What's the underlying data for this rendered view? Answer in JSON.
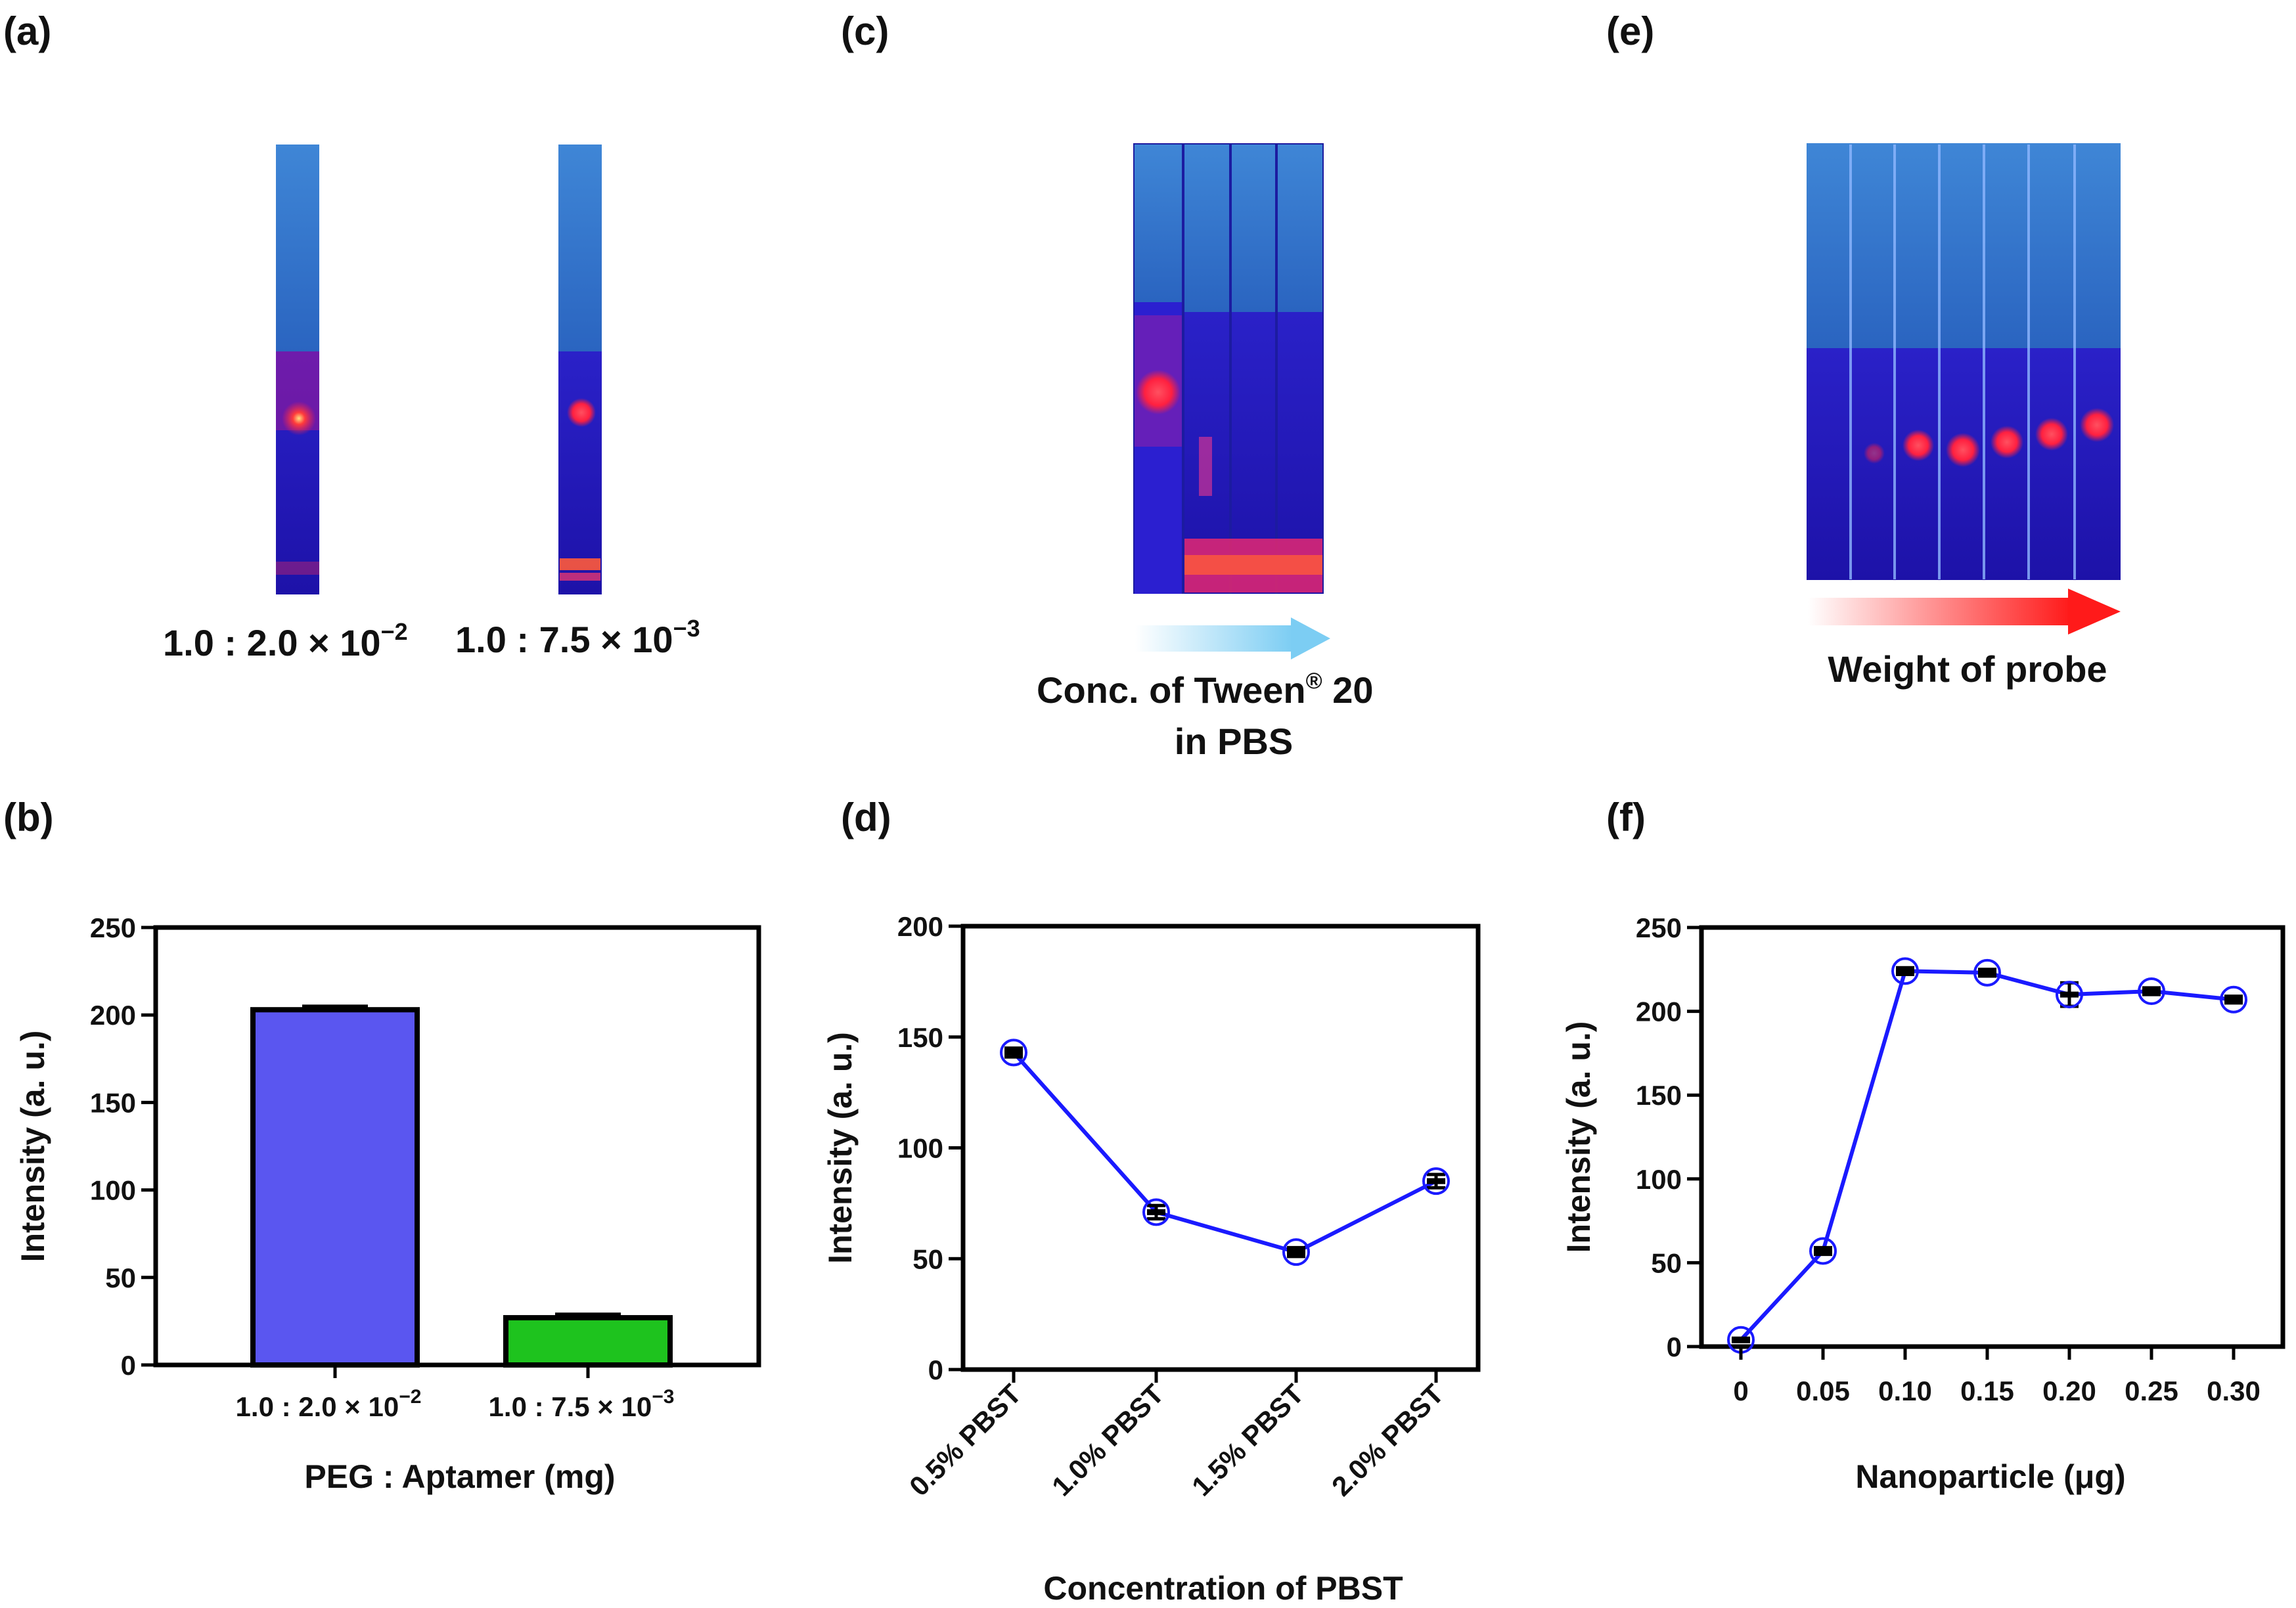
{
  "panels": {
    "a": {
      "label": "(a)",
      "captions": [
        "1.0 : 2.0 × 10",
        "−2",
        "1.0 : 7.5 × 10",
        "−3"
      ]
    },
    "c": {
      "label": "(c)",
      "caption_line1": "Conc. of Tween",
      "caption_reg": "®",
      "caption_line1_tail": " 20",
      "caption_line2": "in PBS",
      "arrow_color": "#8fd3f4"
    },
    "e": {
      "label": "(e)",
      "caption": "Weight of probe",
      "arrow_color": "#ff2020"
    },
    "b": {
      "label": "(b)"
    },
    "d": {
      "label": "(d)"
    },
    "f": {
      "label": "(f)"
    }
  },
  "chart_data": [
    {
      "panel": "b",
      "type": "bar",
      "categories": [
        "1.0 : 2.0 × 10",
        "1.0 : 7.5 × 10"
      ],
      "category_exponents": [
        "−2",
        "−3"
      ],
      "values": [
        203,
        27
      ],
      "errors": [
        2,
        2
      ],
      "colors": [
        "#5a56f0",
        "#1ec31e"
      ],
      "xlabel": "PEG  : Aptamer  (mg)",
      "ylabel": "Intensity  (a. u.)",
      "ylim": [
        0,
        250
      ],
      "yticks": [
        0,
        50,
        100,
        150,
        200,
        250
      ]
    },
    {
      "panel": "d",
      "type": "line",
      "categories": [
        "0.5% PBST",
        "1.0% PBST",
        "1.5% PBST",
        "2.0% PBST"
      ],
      "values": [
        143,
        71,
        53,
        85
      ],
      "errors": [
        2,
        3,
        2,
        3
      ],
      "line_color": "#1a1aff",
      "xlabel": "Concentration of PBST",
      "ylabel": "Intensity  (a. u.)",
      "ylim": [
        0,
        200
      ],
      "yticks": [
        0,
        50,
        100,
        150,
        200
      ]
    },
    {
      "panel": "f",
      "type": "line",
      "x": [
        0,
        0.05,
        0.1,
        0.15,
        0.2,
        0.25,
        0.3
      ],
      "xtick_labels": [
        "0",
        "0.05",
        "0.10",
        "0.15",
        "0.20",
        "0.25",
        "0.30"
      ],
      "values": [
        4,
        57,
        224,
        223,
        210,
        212,
        207
      ],
      "errors": [
        1,
        2,
        2,
        2,
        7,
        2,
        2
      ],
      "line_color": "#1a1aff",
      "xlabel": "Nanoparticle (μg)",
      "ylabel": "Intensity  (a. u.)",
      "ylim": [
        0,
        250
      ],
      "yticks": [
        0,
        50,
        100,
        150,
        200,
        250
      ]
    }
  ]
}
